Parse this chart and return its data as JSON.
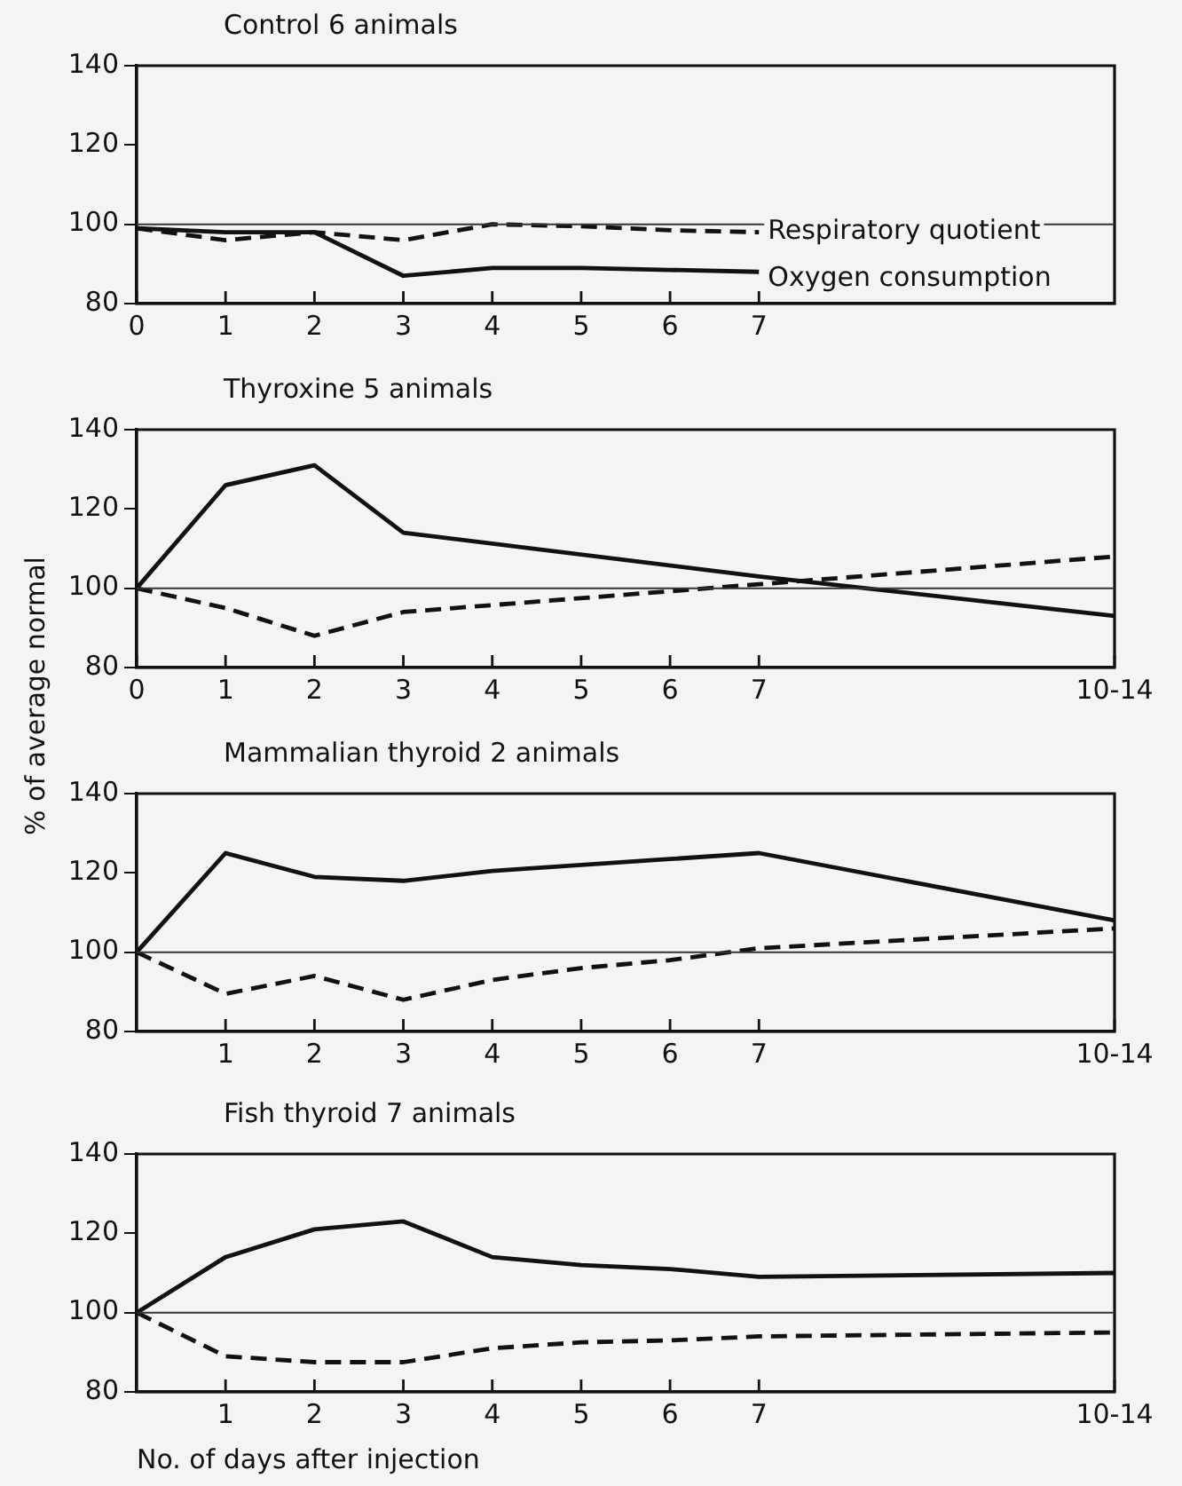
{
  "chart_data": [
    {
      "type": "line",
      "title": "Control 6 animals",
      "categories": [
        "0",
        "1",
        "2",
        "3",
        "4",
        "5",
        "6",
        "7",
        null,
        null,
        null,
        null
      ],
      "ylim": [
        80,
        140
      ],
      "yticks": [
        80,
        100,
        120,
        140
      ],
      "grid": false,
      "legend": false,
      "marker": "none",
      "ref_lines": [
        {
          "axis": "y",
          "value": 100
        }
      ],
      "series": [
        {
          "name": "Respiratory quotient",
          "color": "#111111",
          "line_style": "dashed",
          "values": [
            99,
            96,
            98,
            96,
            100,
            99.5,
            98.5,
            98,
            null,
            null,
            null,
            null
          ]
        },
        {
          "name": "Oxygen consumption",
          "color": "#111111",
          "line_style": "solid",
          "values": [
            99,
            98,
            98,
            87,
            89,
            89,
            88.5,
            88,
            null,
            null,
            null,
            null
          ]
        }
      ]
    },
    {
      "type": "line",
      "title": "Thyroxine 5 animals",
      "ylabel": "% of average normal",
      "categories": [
        "0",
        "1",
        "2",
        "3",
        "4",
        "5",
        "6",
        "7",
        null,
        null,
        null,
        "10-14"
      ],
      "ylim": [
        80,
        140
      ],
      "yticks": [
        80,
        100,
        120,
        140
      ],
      "grid": false,
      "legend": false,
      "marker": "none",
      "ref_lines": [
        {
          "axis": "y",
          "value": 100
        }
      ],
      "series": [
        {
          "color": "#111111",
          "line_style": "solid",
          "values": [
            100,
            126,
            131,
            114,
            null,
            null,
            null,
            103,
            null,
            null,
            null,
            93
          ]
        },
        {
          "color": "#111111",
          "line_style": "dashed",
          "values": [
            100,
            95,
            88,
            94,
            null,
            null,
            null,
            101,
            null,
            null,
            null,
            108
          ]
        }
      ]
    },
    {
      "type": "line",
      "title": "Mammalian thyroid 2 animals",
      "categories": [
        null,
        "1",
        "2",
        "3",
        "4",
        "5",
        "6",
        "7",
        null,
        null,
        null,
        "10-14"
      ],
      "ylim": [
        80,
        140
      ],
      "yticks": [
        80,
        100,
        120,
        140
      ],
      "grid": false,
      "legend": false,
      "marker": "none",
      "ref_lines": [
        {
          "axis": "y",
          "value": 100
        }
      ],
      "series": [
        {
          "color": "#111111",
          "line_style": "solid",
          "values": [
            100,
            125,
            119,
            118,
            120.5,
            122,
            123.5,
            125,
            null,
            null,
            null,
            108
          ]
        },
        {
          "color": "#111111",
          "line_style": "dashed",
          "values": [
            100,
            89.5,
            94,
            88,
            93,
            96,
            98,
            101,
            null,
            null,
            null,
            106
          ]
        }
      ]
    },
    {
      "type": "line",
      "title": "Fish thyroid 7 animals",
      "xlabel": "No. of days after injection",
      "categories": [
        null,
        "1",
        "2",
        "3",
        "4",
        "5",
        "6",
        "7",
        null,
        null,
        null,
        "10-14"
      ],
      "ylim": [
        80,
        140
      ],
      "yticks": [
        80,
        100,
        120,
        140
      ],
      "grid": false,
      "legend": false,
      "marker": "none",
      "ref_lines": [
        {
          "axis": "y",
          "value": 100
        }
      ],
      "series": [
        {
          "color": "#111111",
          "line_style": "solid",
          "values": [
            100,
            114,
            121,
            123,
            114,
            112,
            111,
            109,
            null,
            null,
            null,
            110
          ]
        },
        {
          "color": "#111111",
          "line_style": "dashed",
          "values": [
            100,
            89,
            87.5,
            87.5,
            91,
            92.5,
            93,
            94,
            null,
            null,
            null,
            95
          ]
        }
      ]
    }
  ]
}
